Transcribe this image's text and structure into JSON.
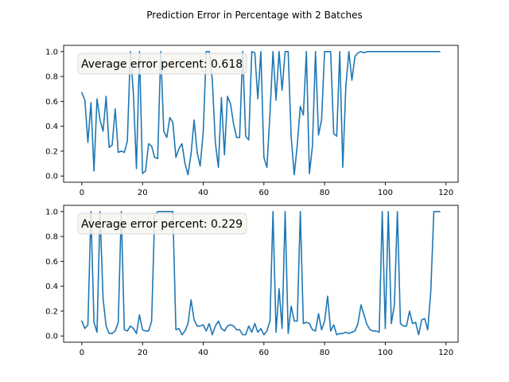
{
  "figure": {
    "title": "Prediction Error in Percentage with 2 Batches"
  },
  "chart_data": [
    {
      "type": "line",
      "annotation": "Average error percent: 0.618",
      "xlim": [
        -6,
        124
      ],
      "ylim": [
        -0.05,
        1.05
      ],
      "xticks": [
        0,
        20,
        40,
        60,
        80,
        100,
        120
      ],
      "yticks": [
        0.0,
        0.2,
        0.4,
        0.6,
        0.8,
        1.0
      ],
      "xtick_labels": [
        "0",
        "20",
        "40",
        "60",
        "80",
        "100",
        "120"
      ],
      "ytick_labels": [
        "0.0",
        "0.2",
        "0.4",
        "0.6",
        "0.8",
        "1.0"
      ],
      "color": "#1f77b4",
      "legend": "none",
      "grid": false,
      "series": [
        {
          "x": [
            0,
            1,
            2,
            3,
            4,
            5,
            6,
            7,
            8,
            9,
            10,
            11,
            12,
            13,
            14,
            15,
            16,
            17,
            18,
            19,
            20,
            21,
            22,
            23,
            24,
            25,
            26,
            27,
            28,
            29,
            30,
            31,
            32,
            33,
            34,
            35,
            36,
            37,
            38,
            39,
            40,
            41,
            42,
            43,
            44,
            45,
            46,
            47,
            48,
            49,
            50,
            51,
            52,
            53,
            54,
            55,
            56,
            57,
            58,
            59,
            60,
            61,
            62,
            63,
            64,
            65,
            66,
            67,
            68,
            69,
            70,
            71,
            72,
            73,
            74,
            75,
            76,
            77,
            78,
            79,
            80,
            81,
            82,
            83,
            84,
            85,
            86,
            87,
            88,
            89,
            90,
            91,
            92,
            93,
            94,
            95,
            96,
            97,
            98,
            99,
            100,
            101,
            102,
            103,
            104,
            105,
            106,
            107,
            108,
            109,
            110,
            111,
            112,
            113,
            114,
            115,
            116,
            117,
            118
          ],
          "values": [
            0.67,
            0.61,
            0.27,
            0.59,
            0.04,
            0.62,
            0.45,
            0.36,
            0.64,
            0.23,
            0.25,
            0.54,
            0.19,
            0.2,
            0.19,
            0.28,
            1.0,
            0.66,
            0.06,
            1.0,
            0.02,
            0.04,
            0.26,
            0.24,
            0.15,
            0.14,
            1.0,
            0.36,
            0.31,
            0.47,
            0.43,
            0.15,
            0.22,
            0.26,
            0.1,
            0.01,
            0.18,
            0.45,
            0.19,
            0.08,
            0.35,
            1.0,
            1.0,
            0.77,
            0.27,
            0.07,
            0.63,
            0.17,
            0.64,
            0.58,
            0.42,
            0.31,
            0.31,
            1.0,
            0.32,
            0.29,
            1.0,
            0.99,
            0.62,
            1.0,
            0.15,
            0.07,
            0.5,
            1.0,
            0.61,
            1.0,
            0.69,
            1.0,
            1.0,
            0.31,
            0.01,
            0.25,
            0.56,
            0.49,
            1.0,
            0.02,
            0.24,
            1.0,
            0.33,
            0.45,
            1.0,
            1.0,
            1.0,
            0.34,
            0.32,
            1.0,
            0.07,
            0.72,
            1.0,
            0.77,
            0.96,
            0.99,
            1.0,
            0.99,
            1.0,
            1.0,
            1.0,
            1.0,
            1.0,
            1.0,
            1.0,
            1.0,
            1.0,
            1.0,
            1.0,
            1.0,
            1.0,
            1.0,
            1.0,
            1.0,
            1.0,
            1.0,
            1.0,
            1.0,
            1.0,
            1.0,
            1.0,
            1.0,
            1.0
          ]
        }
      ]
    },
    {
      "type": "line",
      "annotation": "Average error percent: 0.229",
      "xlim": [
        -6,
        124
      ],
      "ylim": [
        -0.05,
        1.05
      ],
      "xticks": [
        0,
        20,
        40,
        60,
        80,
        100,
        120
      ],
      "yticks": [
        0.0,
        0.2,
        0.4,
        0.6,
        0.8,
        1.0
      ],
      "xtick_labels": [
        "0",
        "20",
        "40",
        "60",
        "80",
        "100",
        "120"
      ],
      "ytick_labels": [
        "0.0",
        "0.2",
        "0.4",
        "0.6",
        "0.8",
        "1.0"
      ],
      "color": "#1f77b4",
      "legend": "none",
      "grid": false,
      "series": [
        {
          "x": [
            0,
            1,
            2,
            3,
            4,
            5,
            6,
            7,
            8,
            9,
            10,
            11,
            12,
            13,
            14,
            15,
            16,
            17,
            18,
            19,
            20,
            21,
            22,
            23,
            24,
            25,
            26,
            27,
            28,
            29,
            30,
            31,
            32,
            33,
            34,
            35,
            36,
            37,
            38,
            39,
            40,
            41,
            42,
            43,
            44,
            45,
            46,
            47,
            48,
            49,
            50,
            51,
            52,
            53,
            54,
            55,
            56,
            57,
            58,
            59,
            60,
            61,
            62,
            63,
            64,
            65,
            66,
            67,
            68,
            69,
            70,
            71,
            72,
            73,
            74,
            75,
            76,
            77,
            78,
            79,
            80,
            81,
            82,
            83,
            84,
            85,
            86,
            87,
            88,
            89,
            90,
            91,
            92,
            93,
            94,
            95,
            96,
            97,
            98,
            99,
            100,
            101,
            102,
            103,
            104,
            105,
            106,
            107,
            108,
            109,
            110,
            111,
            112,
            113,
            114,
            115,
            116,
            117,
            118
          ],
          "values": [
            0.12,
            0.06,
            0.09,
            1.0,
            0.11,
            0.03,
            1.0,
            0.3,
            0.08,
            0.02,
            0.02,
            0.04,
            0.11,
            1.0,
            0.05,
            0.04,
            0.08,
            0.06,
            0.02,
            0.17,
            0.05,
            0.04,
            0.04,
            0.12,
            0.97,
            1.0,
            1.0,
            1.0,
            1.0,
            1.0,
            1.0,
            0.05,
            0.06,
            0.01,
            0.04,
            0.1,
            0.29,
            0.13,
            0.08,
            0.08,
            0.09,
            0.04,
            0.1,
            0.01,
            0.08,
            0.12,
            0.06,
            0.04,
            0.08,
            0.09,
            0.08,
            0.05,
            0.05,
            0.01,
            0.01,
            0.08,
            0.03,
            0.1,
            0.03,
            0.06,
            0.01,
            0.04,
            0.12,
            1.0,
            0.03,
            0.38,
            0.06,
            1.0,
            0.02,
            0.24,
            0.12,
            0.12,
            1.0,
            0.1,
            0.11,
            0.1,
            0.05,
            0.04,
            0.18,
            0.05,
            0.12,
            0.32,
            0.04,
            0.09,
            0.01,
            0.02,
            0.02,
            0.03,
            0.02,
            0.03,
            0.04,
            0.1,
            0.25,
            0.17,
            0.09,
            0.05,
            0.04,
            0.04,
            0.03,
            1.0,
            0.06,
            1.0,
            0.1,
            0.25,
            1.0,
            0.1,
            0.08,
            0.08,
            0.2,
            0.1,
            0.11,
            0.01,
            0.13,
            0.14,
            0.05,
            0.36,
            1.0,
            1.0,
            1.0
          ]
        }
      ]
    }
  ]
}
